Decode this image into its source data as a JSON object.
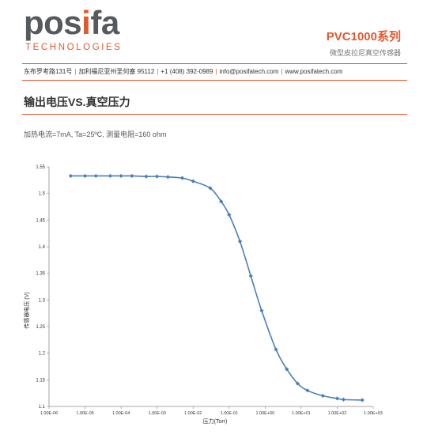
{
  "brand": {
    "logo_prefix": "pos",
    "logo_accent": "i",
    "logo_suffix": "fa",
    "tagline": "TECHNOLOGIES",
    "accent_color": "#e4572e",
    "gray_color": "#555a5f"
  },
  "product": {
    "title": "PVC1000系列",
    "subtitle": "微型皮拉尼真空传感器"
  },
  "contact": {
    "address": "东布罗考路131号",
    "city": "加利福尼亚州圣何塞 95112",
    "phone": "+1 (408) 392-0989",
    "email": "info@posifatech.com",
    "website": "www.posifatech.com",
    "separator": "|"
  },
  "section": {
    "title": "输出电压VS.真空压力",
    "conditions": "加热电流=7mA, Ta=25ºC, 测量电阻=160 ohm"
  },
  "chart_data": {
    "type": "line",
    "title": "",
    "xlabel": "压力(Torr)",
    "ylabel": "传感器电压 (V)",
    "x_scale": "log",
    "xlim": [
      1e-06,
      1000.0
    ],
    "ylim": [
      1.1,
      1.55
    ],
    "x_ticks": [
      1e-06,
      1e-05,
      0.0001,
      0.001,
      0.01,
      0.1,
      1.0,
      10.0,
      100.0,
      1000.0
    ],
    "x_tick_labels": [
      "1.00E-06",
      "1.00E-05",
      "1.00E-04",
      "1.00E-03",
      "1.00E-02",
      "1.00E-01",
      "1.00E+00",
      "1.00E+01",
      "1.00E+02",
      "1.00E+03"
    ],
    "y_ticks": [
      1.1,
      1.15,
      1.2,
      1.25,
      1.3,
      1.35,
      1.4,
      1.45,
      1.5,
      1.55
    ],
    "y_tick_labels": [
      "1.1",
      "1.15",
      "1.2",
      "1.25",
      "1.3",
      "1.35",
      "1.4",
      "1.45",
      "1.5",
      "1.55"
    ],
    "grid": false,
    "line_color": "#4a7ebb",
    "series": [
      {
        "x": [
          4e-06,
          1e-05,
          2e-05,
          5e-05,
          0.0001,
          0.0002,
          0.0005,
          0.001,
          0.002,
          0.005,
          0.01,
          0.03,
          0.06,
          0.1,
          0.2,
          0.4,
          0.8,
          2,
          4,
          8,
          15,
          40,
          100.0,
          150.0,
          500.0
        ],
        "y": [
          1.533,
          1.533,
          1.533,
          1.533,
          1.533,
          1.533,
          1.532,
          1.532,
          1.531,
          1.529,
          1.523,
          1.51,
          1.485,
          1.46,
          1.41,
          1.345,
          1.28,
          1.207,
          1.17,
          1.143,
          1.13,
          1.12,
          1.115,
          1.113,
          1.112
        ]
      }
    ]
  }
}
